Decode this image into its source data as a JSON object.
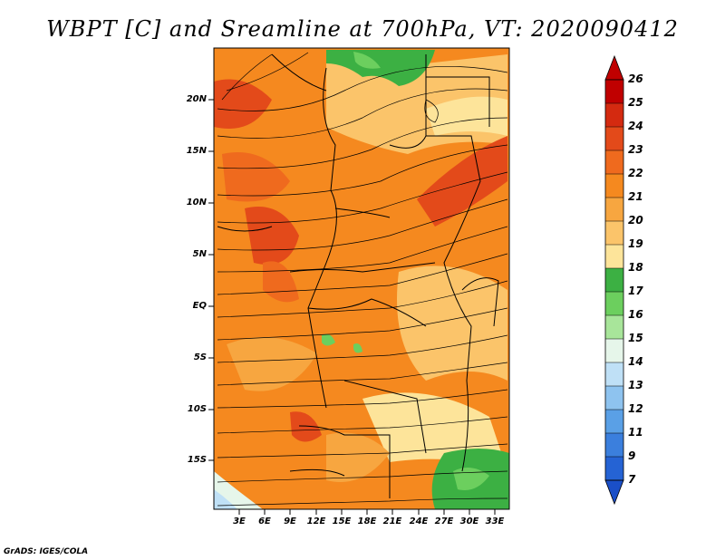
{
  "title": "WBPT [C] and Sreamline at 700hPa, VT: 2020090412",
  "footer": "GrADS: IGES/COLA",
  "map": {
    "lat_ticks": [
      "20N",
      "15N",
      "10N",
      "5N",
      "EQ",
      "5S",
      "10S",
      "15S"
    ],
    "lon_ticks": [
      "3E",
      "6E",
      "9E",
      "12E",
      "15E",
      "18E",
      "21E",
      "24E",
      "27E",
      "30E",
      "33E"
    ]
  },
  "colorbar": {
    "labels": [
      "26",
      "25",
      "24",
      "23",
      "22",
      "21",
      "20",
      "19",
      "18",
      "17",
      "16",
      "15",
      "14",
      "13",
      "12",
      "11",
      "9",
      "7"
    ],
    "colors": [
      "#c00000",
      "#d42a10",
      "#e34a1a",
      "#ef6a1e",
      "#f5891f",
      "#f7a640",
      "#fbc46a",
      "#fde49a",
      "#3cb043",
      "#6ccf5e",
      "#a8e59a",
      "#e6f6ea",
      "#bfe0f6",
      "#8ec3ef",
      "#5aa0e6",
      "#3b7fdd",
      "#2563d4",
      "#1a4fc8"
    ]
  }
}
